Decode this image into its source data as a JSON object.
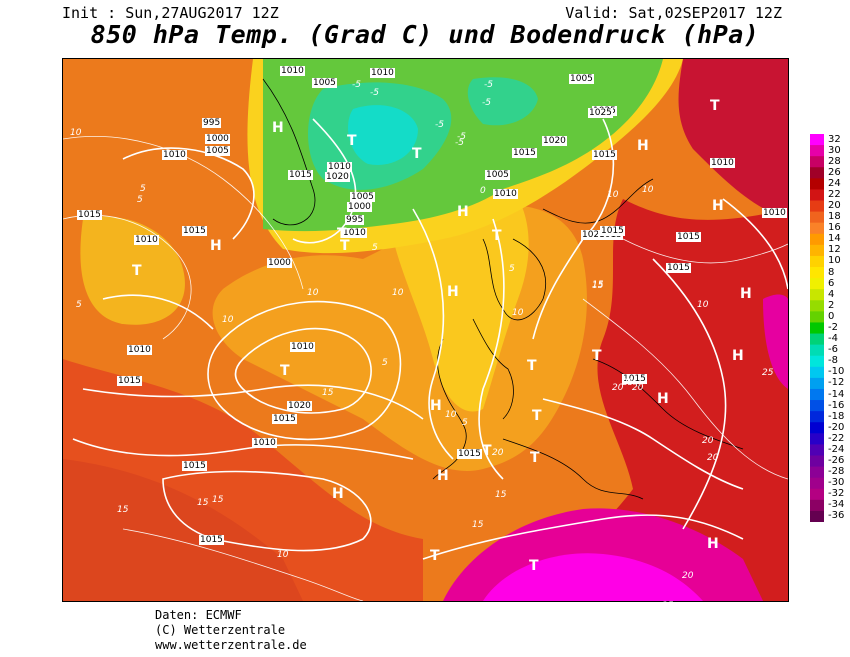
{
  "header": {
    "init": "Init : Sun,27AUG2017 12Z",
    "valid": "Valid: Sat,02SEP2017 12Z",
    "title": "850 hPa Temp. (Grad C) und Bodendruck (hPa)"
  },
  "colorbar": {
    "labels": [
      "32",
      "30",
      "28",
      "26",
      "24",
      "22",
      "20",
      "18",
      "16",
      "14",
      "12",
      "10",
      "8",
      "6",
      "4",
      "2",
      "0",
      "-2",
      "-4",
      "-6",
      "-8",
      "-10",
      "-12",
      "-14",
      "-16",
      "-18",
      "-20",
      "-22",
      "-24",
      "-26",
      "-28",
      "-30",
      "-32",
      "-34",
      "-36"
    ],
    "colors": [
      "#ff00ff",
      "#e600a8",
      "#c80064",
      "#a00028",
      "#b40000",
      "#d21414",
      "#e63c14",
      "#f0641e",
      "#fa8228",
      "#ff9a00",
      "#ffb400",
      "#ffd200",
      "#ffe600",
      "#f0f000",
      "#c8e600",
      "#96dc00",
      "#64d200",
      "#00c800",
      "#00d278",
      "#00dcb4",
      "#00e6dc",
      "#00c8f0",
      "#00a0f0",
      "#0078f0",
      "#0050e6",
      "#0028dc",
      "#0000d2",
      "#2800c8",
      "#5000b4",
      "#6e00a0",
      "#8c0096",
      "#a0008c",
      "#b40082",
      "#8c0064",
      "#640050"
    ]
  },
  "isobars": [
    "1010",
    "1005",
    "1010",
    "1005",
    "995",
    "1000",
    "1005",
    "1010",
    "1015",
    "1010",
    "1005",
    "1000",
    "995",
    "1010",
    "1015",
    "1020",
    "1010",
    "1000",
    "1005",
    "1010",
    "1015",
    "1020",
    "1025",
    "1025",
    "1015",
    "1020",
    "1015",
    "1015",
    "1015",
    "1015",
    "1010",
    "1010",
    "1015",
    "1010",
    "1020",
    "1015",
    "1010",
    "1015",
    "1010",
    "1015",
    "1015",
    "1015",
    "1015"
  ],
  "temp_labels": [
    "10",
    "5",
    "5",
    "10",
    "10",
    "10",
    "15",
    "10",
    "10",
    "20",
    "10",
    "5",
    "5",
    "-5",
    "-5",
    "-5",
    "-5",
    "-5",
    "-5",
    "-5",
    "0",
    "5",
    "15",
    "15",
    "20",
    "25",
    "25",
    "20",
    "20",
    "25",
    "15",
    "15",
    "10",
    "10",
    "15",
    "20",
    "15",
    "5",
    "15",
    "20",
    "5",
    "10"
  ],
  "centers": [
    "H",
    "H",
    "H",
    "H",
    "H",
    "H",
    "H",
    "H",
    "H",
    "H",
    "H",
    "H",
    "H",
    "T",
    "T",
    "T",
    "T",
    "T",
    "T",
    "T",
    "T",
    "T",
    "T",
    "T",
    "T",
    "T",
    "T",
    "T"
  ],
  "footer": {
    "line1": "Daten: ECMWF",
    "line2": "(C) Wetterzentrale",
    "line3": "www.wetterzentrale.de"
  }
}
